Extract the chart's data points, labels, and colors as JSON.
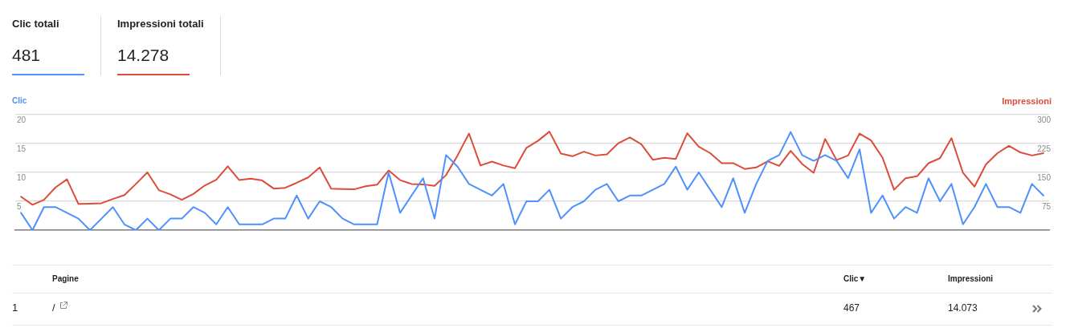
{
  "chart_data": [
    {
      "type": "other",
      "categories": [
        "Clic totali",
        "Impressioni totali"
      ],
      "value_labels": [
        "481",
        "14.278"
      ],
      "colors": [
        "#4d90fe",
        "#dd4b39"
      ]
    },
    {
      "type": "line",
      "ylabel": "Clic",
      "y2label": "Impressioni",
      "categories": [
        null,
        null,
        null,
        null,
        null,
        null,
        null,
        null,
        null,
        null,
        null,
        null,
        null,
        null,
        null,
        null,
        null,
        null,
        null,
        null,
        null,
        null,
        null,
        null,
        null,
        null,
        null,
        null,
        null,
        null,
        null,
        null,
        null,
        null,
        null,
        null,
        null,
        null,
        null,
        null,
        null,
        null,
        null,
        null,
        null,
        null,
        null,
        null,
        null,
        null,
        null,
        null,
        null,
        null,
        null,
        null,
        null,
        null,
        null,
        null,
        null,
        null,
        null,
        null,
        null,
        null,
        null,
        null,
        null,
        null,
        null,
        null,
        null,
        null,
        null,
        null,
        null,
        null,
        null,
        null,
        null,
        null,
        null,
        null,
        null,
        null,
        null,
        null,
        null,
        null
      ],
      "series": [
        {
          "color": "#4d90fe",
          "axis": "y",
          "values": [
            3,
            0,
            4,
            4,
            3,
            2,
            0,
            2,
            4,
            1,
            0,
            2,
            0,
            2,
            2,
            4,
            3,
            1,
            4,
            1,
            1,
            1,
            2,
            2,
            6,
            2,
            5,
            4,
            2,
            1,
            1,
            1,
            10,
            3,
            6,
            9,
            2,
            13,
            11,
            8,
            7,
            6,
            8,
            1,
            5,
            5,
            7,
            2,
            4,
            5,
            7,
            8,
            5,
            6,
            6,
            7,
            8,
            11,
            7,
            10,
            7,
            4,
            9,
            3,
            8,
            12,
            13,
            17,
            13,
            12,
            13,
            12,
            9,
            14,
            3,
            6,
            2,
            4,
            3,
            9,
            5,
            8,
            1,
            4,
            8,
            4,
            4,
            3,
            8,
            6
          ]
        },
        {
          "color": "#dd4b39",
          "axis": "y2",
          "values": [
            87,
            66,
            79,
            111,
            132,
            68,
            69,
            70,
            81,
            91,
            120,
            150,
            104,
            93,
            79,
            94,
            116,
            131,
            166,
            130,
            134,
            129,
            108,
            110,
            123,
            137,
            163,
            108,
            107,
            106,
            114,
            118,
            155,
            130,
            120,
            119,
            115,
            143,
            194,
            251,
            168,
            178,
            168,
            161,
            214,
            232,
            256,
            199,
            192,
            204,
            194,
            197,
            226,
            241,
            223,
            183,
            188,
            185,
            252,
            217,
            200,
            174,
            174,
            159,
            163,
            179,
            167,
            206,
            172,
            149,
            237,
            182,
            194,
            251,
            233,
            188,
            105,
            135,
            140,
            174,
            187,
            239,
            149,
            113,
            171,
            200,
            219,
            202,
            194,
            200
          ]
        }
      ],
      "ylim": [
        0,
        20
      ],
      "yticks": [
        5,
        10,
        15,
        20
      ],
      "y2lim": [
        0,
        300
      ],
      "y2ticks": [
        75,
        150,
        225,
        300
      ],
      "grid": "y",
      "marker": "none"
    },
    {
      "type": "other",
      "categories": [
        "Pagine",
        "Clic▼",
        "Impressioni"
      ],
      "annotations": [
        "1",
        "/",
        "467",
        "14.073"
      ]
    }
  ]
}
